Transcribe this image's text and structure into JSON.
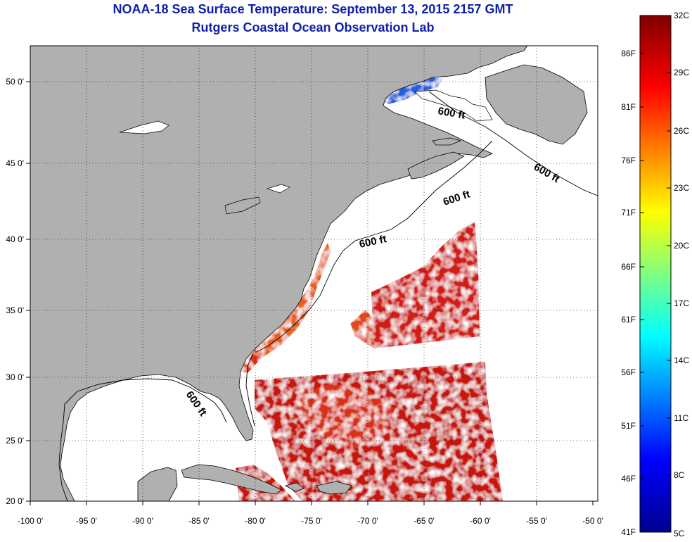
{
  "title_line1": "NOAA-18 Sea Surface Temperature:  September 13, 2015 2157 GMT",
  "title_line2": "Rutgers Coastal Ocean Observation Lab",
  "lon_ticks": [
    "-100 0'",
    "-95 0'",
    "-90 0'",
    "-85 0'",
    "-80 0'",
    "-75 0'",
    "-70 0'",
    "-65 0'",
    "-60 0'",
    "-55 0'",
    "-50 0'"
  ],
  "lat_ticks": [
    "50 0'",
    "45 0'",
    "40 0'",
    "35 0'",
    "30 0'",
    "25 0'",
    "20 0'"
  ],
  "contour_label": "600 ft",
  "colorbar": {
    "fahrenheit": [
      "86F",
      "81F",
      "76F",
      "71F",
      "66F",
      "61F",
      "56F",
      "51F",
      "46F",
      "41F"
    ],
    "celsius": [
      "32C",
      "29C",
      "26C",
      "23C",
      "20C",
      "17C",
      "14C",
      "11C",
      "8C",
      "5C"
    ],
    "colors": [
      "#00008f",
      "#0000ff",
      "#00ffff",
      "#ffff00",
      "#ff0000",
      "#800000"
    ]
  },
  "colors": {
    "land": "#b0b0b0",
    "cloud": "#ffffff",
    "warm_sst": "#d01414",
    "title": "#1020a8"
  }
}
